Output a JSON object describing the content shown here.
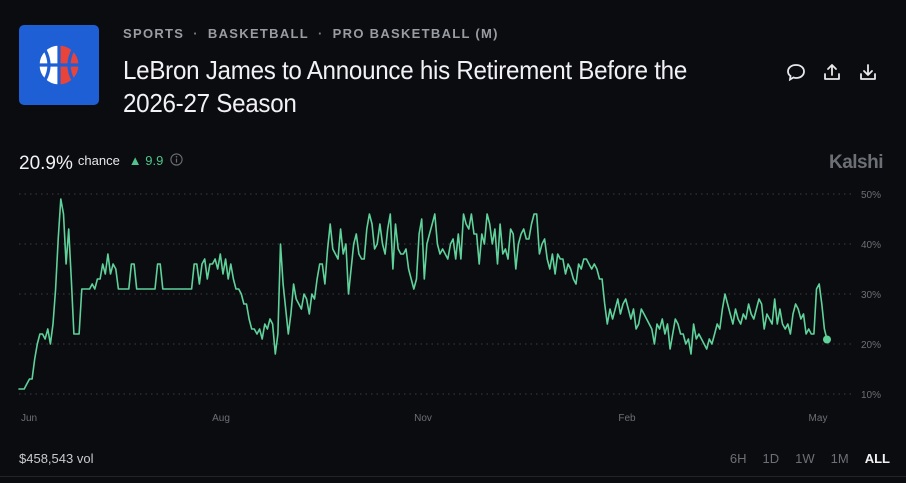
{
  "header": {
    "icon": "basketball-icon",
    "breadcrumb": [
      "SPORTS",
      "BASKETBALL",
      "PRO BASKETBALL (M)"
    ],
    "title": "LeBron James to Announce his Retirement Before the 2026-27 Season",
    "actions": [
      "comment-icon",
      "share-icon",
      "download-icon"
    ]
  },
  "stat": {
    "value": "20.9%",
    "label": "chance",
    "delta_arrow": "▲",
    "delta": "9.9",
    "info_icon": "info-icon"
  },
  "brand": "Kalshi",
  "chart_data": {
    "type": "line",
    "x_ticks": [
      "Jun",
      "Aug",
      "Nov",
      "Feb",
      "May"
    ],
    "y_ticks": [
      "50%",
      "40%",
      "30%",
      "20%",
      "10%"
    ],
    "ylim": [
      10,
      50
    ],
    "grid": true,
    "series": [
      {
        "color": "#5fd19a",
        "values": [
          11,
          11,
          11,
          12,
          13,
          13,
          17,
          20,
          22,
          22,
          21,
          23,
          20,
          24,
          31,
          41,
          49,
          46,
          36,
          43,
          33,
          22,
          22,
          22,
          31,
          31,
          31,
          31,
          32,
          31,
          33,
          33,
          36,
          34,
          38,
          34,
          36,
          35,
          31,
          31,
          31,
          31,
          31,
          36,
          36,
          31,
          31,
          31,
          31,
          31,
          31,
          31,
          31,
          36,
          36,
          31,
          31,
          31,
          31,
          31,
          31,
          31,
          31,
          31,
          31,
          31,
          31,
          36,
          36,
          32,
          36,
          37,
          33,
          36,
          36,
          37,
          35,
          38,
          34,
          37,
          33,
          36,
          33,
          31,
          31,
          30,
          28,
          28,
          25,
          23,
          23,
          22,
          23,
          21,
          24,
          23,
          25,
          24,
          18,
          22,
          40,
          32,
          27,
          22,
          26,
          32,
          29,
          28,
          27,
          30,
          29,
          26,
          30,
          29,
          33,
          36,
          36,
          32,
          39,
          44,
          39,
          38,
          37,
          43,
          38,
          40,
          30,
          35,
          40,
          42,
          38,
          37,
          37,
          43,
          46,
          44,
          39,
          40,
          44,
          40,
          38,
          43,
          46,
          35,
          44,
          39,
          38,
          38,
          39,
          35,
          33,
          31,
          33,
          42,
          45,
          33,
          40,
          42,
          44,
          46,
          40,
          38,
          39,
          38,
          37,
          40,
          41,
          37,
          42,
          37,
          46,
          44,
          43,
          46,
          42,
          42,
          36,
          42,
          40,
          46,
          44,
          40,
          43,
          36,
          44,
          38,
          39,
          37,
          43,
          42,
          35,
          40,
          42,
          43,
          41,
          41,
          44,
          46,
          46,
          38,
          40,
          41,
          37,
          35,
          38,
          34,
          38,
          37,
          37,
          34,
          36,
          35,
          33,
          32,
          36,
          35,
          37,
          37,
          36,
          35,
          36,
          35,
          33,
          33,
          28,
          24,
          27,
          25,
          27,
          29,
          26,
          28,
          29,
          27,
          25,
          27,
          23,
          24,
          27,
          26,
          25,
          24,
          23,
          20,
          24,
          23,
          25,
          22,
          24,
          19,
          22,
          25,
          24,
          22,
          22,
          20,
          21,
          18,
          24,
          21,
          22,
          21,
          20,
          19,
          21,
          20,
          22,
          24,
          23,
          27,
          30,
          28,
          26,
          24,
          27,
          25,
          24,
          26,
          25,
          28,
          26,
          25,
          27,
          29,
          28,
          23,
          26,
          25,
          24,
          29,
          24,
          27,
          24,
          23,
          24,
          22,
          26,
          28,
          27,
          25,
          26,
          22,
          23,
          22,
          22,
          31,
          32,
          28,
          23,
          20.9
        ]
      }
    ]
  },
  "footer": {
    "volume": "$458,543 vol",
    "ranges": [
      "6H",
      "1D",
      "1W",
      "1M",
      "ALL"
    ],
    "active_range": "ALL"
  }
}
